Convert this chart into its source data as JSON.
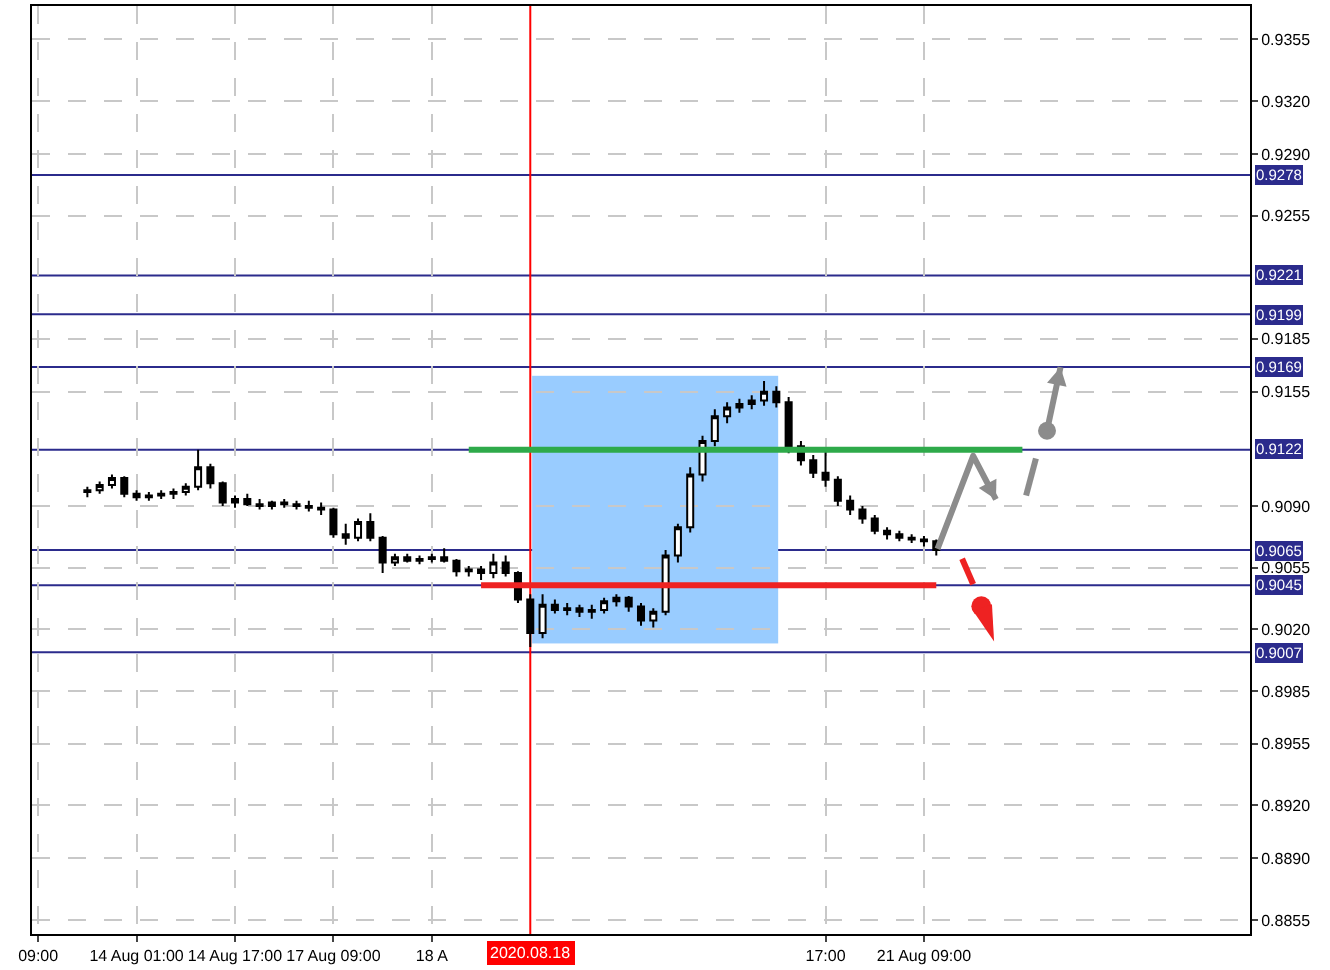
{
  "chart_data": {
    "type": "candlestick",
    "color": "#000000",
    "categories": [
      "09:00",
      null,
      null,
      null,
      null,
      null,
      null,
      null,
      "14 Aug 01:00",
      null,
      null,
      null,
      null,
      null,
      null,
      null,
      "14 Aug 17:00",
      null,
      null,
      null,
      null,
      null,
      null,
      null,
      "17 Aug 09:00",
      null,
      null,
      null,
      null,
      null,
      null,
      null,
      "18 A",
      null,
      null,
      null,
      null,
      null,
      null,
      null,
      null,
      null,
      null,
      null,
      null,
      null,
      null,
      null,
      null,
      null,
      null,
      null,
      null,
      null,
      null,
      null,
      null,
      null,
      null,
      null,
      null,
      null,
      null,
      null,
      "17:00",
      null,
      null,
      null,
      null,
      null,
      null,
      null,
      "21 Aug 09:00",
      null,
      null,
      null,
      null,
      null,
      null,
      null,
      null,
      null,
      null,
      null,
      null,
      null,
      null,
      null,
      null,
      null,
      null,
      null,
      null,
      null,
      null,
      null,
      null,
      null,
      null
    ],
    "ohlc": [
      null,
      null,
      null,
      null,
      [
        0.9098,
        0.9101,
        0.9095,
        0.9099
      ],
      [
        0.9099,
        0.9104,
        0.9097,
        0.9102
      ],
      [
        0.9102,
        0.9108,
        0.91,
        0.9106
      ],
      [
        0.9106,
        0.9107,
        0.9095,
        0.9097
      ],
      [
        0.9097,
        0.9099,
        0.9093,
        0.9095
      ],
      [
        0.9095,
        0.9098,
        0.9093,
        0.9096
      ],
      [
        0.9096,
        0.9099,
        0.9094,
        0.9097
      ],
      [
        0.9097,
        0.91,
        0.9094,
        0.9098
      ],
      [
        0.9098,
        0.9103,
        0.9096,
        0.9101
      ],
      [
        0.9101,
        0.9122,
        0.9099,
        0.9112
      ],
      [
        0.9112,
        0.9114,
        0.91,
        0.9103
      ],
      [
        0.9103,
        0.9104,
        0.909,
        0.9092
      ],
      [
        0.9092,
        0.9096,
        0.9089,
        0.9094
      ],
      [
        0.9094,
        0.9097,
        0.909,
        0.9091
      ],
      [
        0.9091,
        0.9094,
        0.9088,
        0.909
      ],
      [
        0.909,
        0.9093,
        0.9088,
        0.9092
      ],
      [
        0.9092,
        0.9094,
        0.9089,
        0.9091
      ],
      [
        0.9091,
        0.9093,
        0.9088,
        0.909
      ],
      [
        0.909,
        0.9093,
        0.9087,
        0.9089
      ],
      [
        0.9089,
        0.9092,
        0.9085,
        0.9088
      ],
      [
        0.9088,
        0.9089,
        0.9072,
        0.9074
      ],
      [
        0.9074,
        0.908,
        0.9068,
        0.9072
      ],
      [
        0.9072,
        0.9083,
        0.907,
        0.9081
      ],
      [
        0.9081,
        0.9086,
        0.907,
        0.9072
      ],
      [
        0.9072,
        0.9073,
        0.9052,
        0.9058
      ],
      [
        0.9058,
        0.9063,
        0.9056,
        0.9061
      ],
      [
        0.9061,
        0.9063,
        0.9058,
        0.9059
      ],
      [
        0.9059,
        0.9062,
        0.9057,
        0.906
      ],
      [
        0.906,
        0.9063,
        0.9058,
        0.9061
      ],
      [
        0.9061,
        0.9066,
        0.9058,
        0.9059
      ],
      [
        0.9059,
        0.906,
        0.905,
        0.9053
      ],
      [
        0.9053,
        0.9056,
        0.905,
        0.9054
      ],
      [
        0.9054,
        0.9056,
        0.9048,
        0.9052
      ],
      [
        0.9052,
        0.9063,
        0.9049,
        0.9058
      ],
      [
        0.9058,
        0.9062,
        0.905,
        0.9052
      ],
      [
        0.9052,
        0.9053,
        0.9035,
        0.9037
      ],
      [
        0.9037,
        0.904,
        0.901,
        0.9018
      ],
      [
        0.9018,
        0.904,
        0.9015,
        0.9034
      ],
      [
        0.9034,
        0.9037,
        0.9029,
        0.9031
      ],
      [
        0.9031,
        0.9035,
        0.9028,
        0.9032
      ],
      [
        0.9032,
        0.9034,
        0.9027,
        0.903
      ],
      [
        0.903,
        0.9034,
        0.9026,
        0.9031
      ],
      [
        0.9031,
        0.9038,
        0.9029,
        0.9036
      ],
      [
        0.9036,
        0.904,
        0.9033,
        0.9038
      ],
      [
        0.9038,
        0.9039,
        0.903,
        0.9033
      ],
      [
        0.9033,
        0.9035,
        0.9022,
        0.9025
      ],
      [
        0.9025,
        0.9032,
        0.9021,
        0.903
      ],
      [
        0.903,
        0.9065,
        0.9028,
        0.9062
      ],
      [
        0.9062,
        0.908,
        0.9058,
        0.9078
      ],
      [
        0.9078,
        0.9112,
        0.9075,
        0.9108
      ],
      [
        0.9108,
        0.913,
        0.9104,
        0.9127
      ],
      [
        0.9127,
        0.9145,
        0.9124,
        0.9141
      ],
      [
        0.9141,
        0.9149,
        0.9137,
        0.9146
      ],
      [
        0.9146,
        0.9151,
        0.9143,
        0.9148
      ],
      [
        0.9148,
        0.9153,
        0.9145,
        0.915
      ],
      [
        0.915,
        0.9161,
        0.9147,
        0.9155
      ],
      [
        0.9155,
        0.9158,
        0.9146,
        0.9149
      ],
      [
        0.9149,
        0.9152,
        0.912,
        0.9124
      ],
      [
        0.9124,
        0.9127,
        0.9113,
        0.9116
      ],
      [
        0.9116,
        0.9119,
        0.9106,
        0.9109
      ],
      [
        0.9109,
        0.9122,
        0.9101,
        0.9105
      ],
      [
        0.9105,
        0.9107,
        0.909,
        0.9093
      ],
      [
        0.9093,
        0.9096,
        0.9085,
        0.9088
      ],
      [
        0.9088,
        0.909,
        0.908,
        0.9083
      ],
      [
        0.9083,
        0.9085,
        0.9074,
        0.9076
      ],
      [
        0.9076,
        0.9078,
        0.9071,
        0.9074
      ],
      [
        0.9074,
        0.9076,
        0.907,
        0.9072
      ],
      [
        0.9072,
        0.9074,
        0.9069,
        0.9071
      ],
      [
        0.9071,
        0.9073,
        0.9067,
        0.907
      ],
      [
        0.907,
        0.9071,
        0.9062,
        0.9065
      ],
      null,
      null,
      null,
      null,
      null,
      null,
      null,
      null,
      null,
      null,
      null,
      null,
      null,
      null,
      null,
      null,
      null,
      null,
      null,
      null,
      null,
      null,
      null,
      null,
      null
    ],
    "series": [
      {
        "type": "line",
        "color": "#2eaa4a",
        "values": [
          null,
          null,
          null,
          null,
          null,
          null,
          null,
          null,
          null,
          null,
          null,
          null,
          null,
          null,
          null,
          null,
          null,
          null,
          null,
          null,
          null,
          null,
          null,
          null,
          null,
          null,
          null,
          null,
          null,
          null,
          null,
          null,
          null,
          null,
          null,
          0.9122,
          0.9122,
          0.9122,
          0.9122,
          0.9122,
          0.9122,
          0.9122,
          0.9122,
          0.9122,
          0.9122,
          0.9122,
          0.9122,
          0.9122,
          0.9122,
          0.9122,
          0.9122,
          0.9122,
          0.9122,
          0.9122,
          0.9122,
          0.9122,
          0.9122,
          0.9122,
          0.9122,
          0.9122,
          0.9122,
          0.9122,
          0.9122,
          0.9122,
          0.9122,
          0.9122,
          0.9122,
          0.9122,
          0.9122,
          0.9122,
          0.9122,
          0.9122,
          0.9122,
          0.9122,
          0.9122,
          0.9122,
          0.9122,
          0.9122,
          0.9122,
          0.9122,
          0.9122,
          null,
          null,
          null,
          null,
          null,
          null,
          null,
          null,
          null,
          null,
          null,
          null,
          null,
          null,
          null,
          null,
          null,
          null
        ]
      },
      {
        "type": "line",
        "color": "#ee2222",
        "values": [
          null,
          null,
          null,
          null,
          null,
          null,
          null,
          null,
          null,
          null,
          null,
          null,
          null,
          null,
          null,
          null,
          null,
          null,
          null,
          null,
          null,
          null,
          null,
          null,
          null,
          null,
          null,
          null,
          null,
          null,
          null,
          null,
          null,
          null,
          null,
          null,
          0.9045,
          0.9045,
          0.9045,
          0.9045,
          0.9045,
          0.9045,
          0.9045,
          0.9045,
          0.9045,
          0.9045,
          0.9045,
          0.9045,
          0.9045,
          0.9045,
          0.9045,
          0.9045,
          0.9045,
          0.9045,
          0.9045,
          0.9045,
          0.9045,
          0.9045,
          0.9045,
          0.9045,
          0.9045,
          0.9045,
          0.9045,
          0.9045,
          0.9045,
          0.9045,
          0.9045,
          0.9045,
          0.9045,
          0.9045,
          0.9045,
          0.9045,
          0.9045,
          0.9045,
          null,
          null,
          null,
          null,
          null,
          null,
          null,
          null,
          null,
          null,
          null,
          null,
          null,
          null,
          null,
          null,
          null,
          null,
          null,
          null,
          null,
          null,
          null,
          null,
          null
        ]
      }
    ],
    "ylim": [
      0.8847,
      0.9374
    ],
    "yticks": [
      0.9355,
      {
        "value": 0.932,
        "label": "0.9320"
      },
      {
        "value": 0.929,
        "label": "0.9290"
      },
      0.9255,
      0.9185,
      0.9155,
      {
        "value": 0.909,
        "label": "0.9090"
      },
      0.9055,
      {
        "value": 0.902,
        "label": "0.9020"
      },
      0.8985,
      0.8955,
      {
        "value": 0.892,
        "label": "0.8920"
      },
      {
        "value": 0.889,
        "label": "0.8890"
      },
      0.8855
    ],
    "ref_lines": [
      {
        "axis": "y",
        "value": 0.9278,
        "label": "0.9278",
        "color": "#2b2b8c"
      },
      {
        "axis": "y",
        "value": 0.9221,
        "label": "0.9221",
        "color": "#2b2b8c"
      },
      {
        "axis": "y",
        "value": 0.9199,
        "label": "0.9199",
        "color": "#2b2b8c"
      },
      {
        "axis": "y",
        "value": 0.9169,
        "label": "0.9169",
        "color": "#2b2b8c"
      },
      {
        "axis": "y",
        "value": 0.9122,
        "label": "0.9122",
        "color": "#2b2b8c"
      },
      {
        "axis": "y",
        "value": 0.9065,
        "label": "0.9065",
        "color": "#2b2b8c"
      },
      {
        "axis": "y",
        "value": 0.9045,
        "label": "0.9045",
        "color": "#2b2b8c"
      },
      {
        "axis": "y",
        "value": 0.9007,
        "label": "0.9007",
        "color": "#2b2b8c"
      }
    ],
    "annotations": [
      "2020.08.18"
    ],
    "grid": true
  }
}
